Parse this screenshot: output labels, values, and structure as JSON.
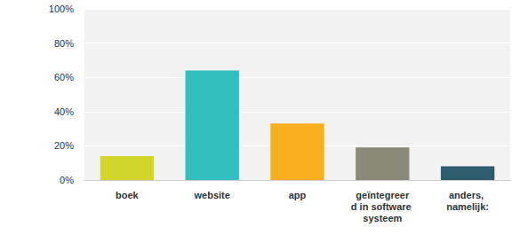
{
  "chart_data": {
    "type": "bar",
    "categories": [
      "boek",
      "website",
      "app",
      "geïntegreerd in software systeem",
      "anders, namelijk:"
    ],
    "values": [
      14,
      64,
      33,
      19,
      8
    ],
    "colors": [
      "#d3d52b",
      "#33bfc0",
      "#f7ae1f",
      "#8b8a78",
      "#2e5e6d"
    ],
    "ylim": [
      0,
      100
    ],
    "yticks": [
      {
        "value": 0,
        "label": "0%"
      },
      {
        "value": 20,
        "label": "20%"
      },
      {
        "value": 40,
        "label": "40%"
      },
      {
        "value": 60,
        "label": "60%"
      },
      {
        "value": 80,
        "label": "80%"
      },
      {
        "value": 100,
        "label": "100%"
      }
    ],
    "grid": true
  }
}
